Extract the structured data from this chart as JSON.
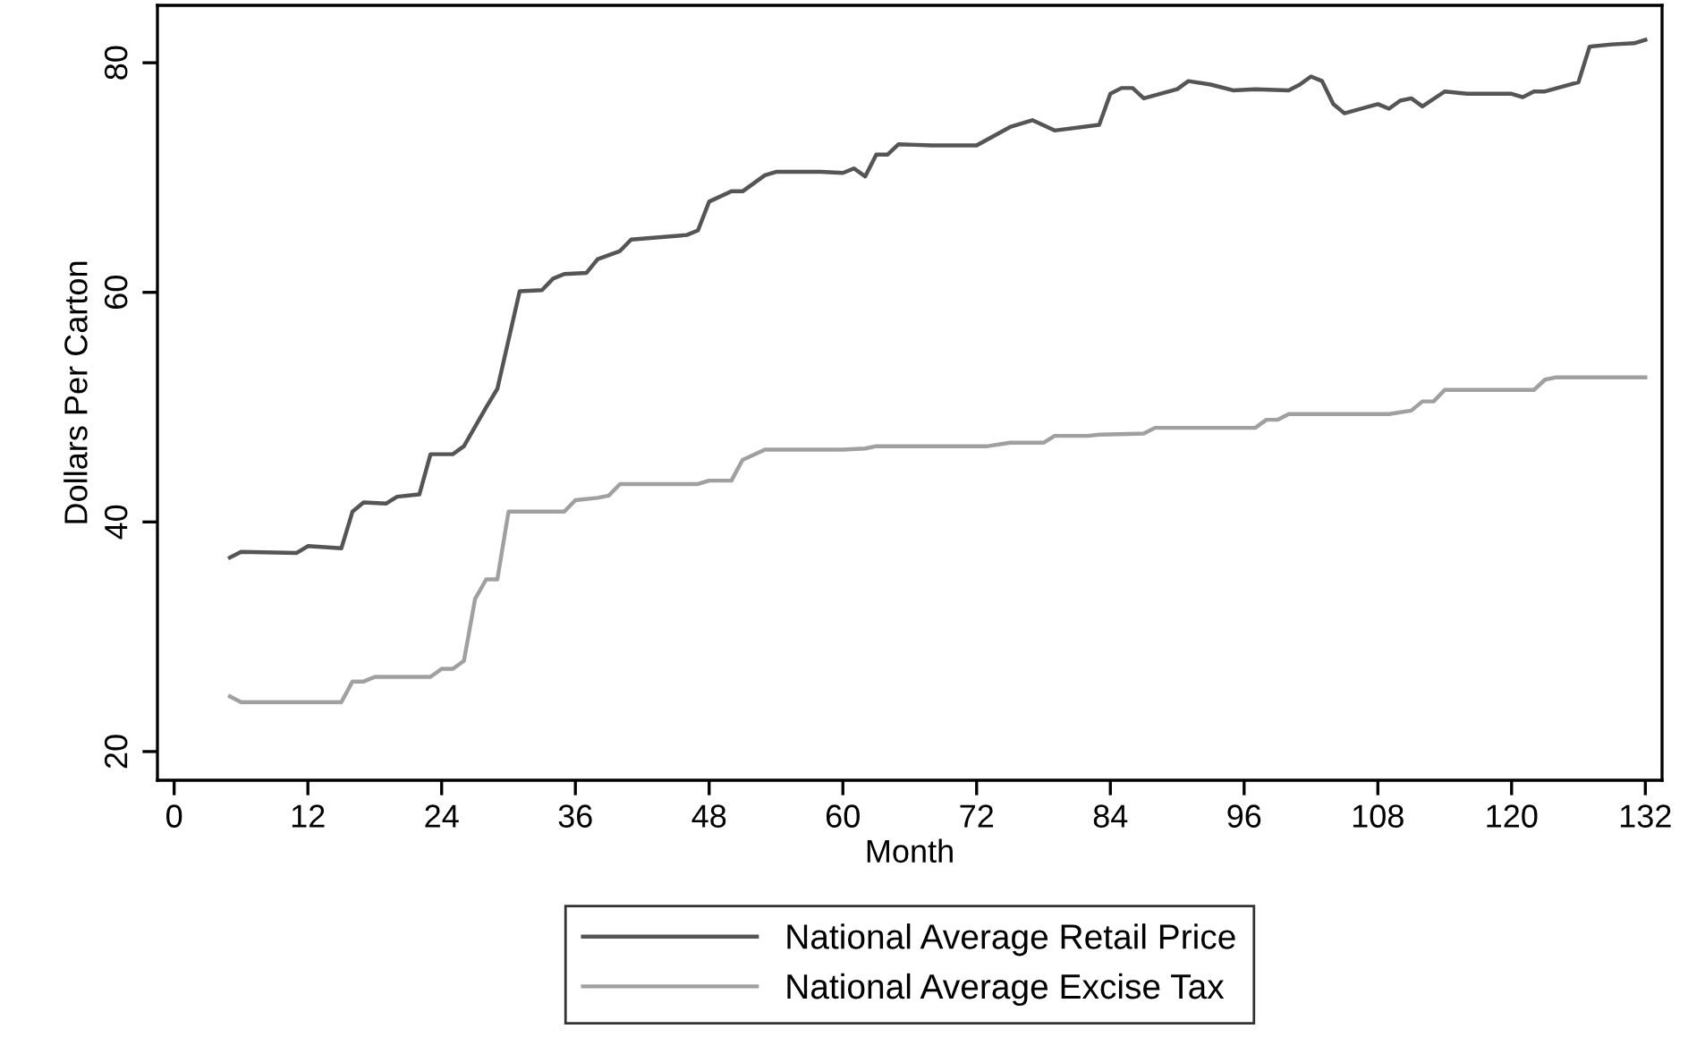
{
  "chart_data": {
    "type": "line",
    "xlabel": "Month",
    "ylabel": "Dollars Per Carton",
    "xlim": [
      -1.5,
      133.5
    ],
    "xticks": [
      0,
      12,
      24,
      36,
      48,
      60,
      72,
      84,
      96,
      108,
      120,
      132
    ],
    "ylim": [
      17.5,
      85
    ],
    "yticks": [
      20,
      40,
      60,
      80
    ],
    "grid": false,
    "legend": "bottom",
    "line_style": "solid",
    "series": [
      {
        "name": "National Average Retail Price",
        "color": "#555555",
        "x": [
          5,
          6,
          11,
          12,
          15,
          16,
          17,
          19,
          20,
          22,
          23,
          25,
          26,
          28,
          29,
          31,
          33,
          34,
          35,
          37,
          38,
          40,
          41,
          46,
          47,
          48,
          50,
          51,
          53,
          54,
          58,
          60,
          61,
          62,
          63,
          64,
          65,
          68,
          72,
          75,
          77,
          79,
          83,
          84,
          85,
          86,
          87,
          90,
          91,
          93,
          95,
          97,
          100,
          101,
          102,
          103,
          104,
          105,
          108,
          109,
          110,
          111,
          112,
          114,
          116,
          120,
          121,
          122,
          123,
          126,
          127,
          129,
          131,
          132
        ],
        "values": [
          36.9,
          37.4,
          37.3,
          37.9,
          37.7,
          40.9,
          41.7,
          41.6,
          42.2,
          42.4,
          45.9,
          45.9,
          46.6,
          50.0,
          51.6,
          60.1,
          60.2,
          61.2,
          61.6,
          61.7,
          62.9,
          63.6,
          64.6,
          65.0,
          65.4,
          67.9,
          68.8,
          68.8,
          70.2,
          70.5,
          70.5,
          70.4,
          70.8,
          70.1,
          72.0,
          72.0,
          72.9,
          72.8,
          72.8,
          74.4,
          75.0,
          74.1,
          74.6,
          77.3,
          77.8,
          77.8,
          76.9,
          77.7,
          78.4,
          78.1,
          77.6,
          77.7,
          77.6,
          78.1,
          78.8,
          78.4,
          76.4,
          75.6,
          76.4,
          76.0,
          76.7,
          76.9,
          76.2,
          77.5,
          77.3,
          77.3,
          77.0,
          77.5,
          77.5,
          78.3,
          81.4,
          81.6,
          81.7,
          82.0
        ]
      },
      {
        "name": "National Average Excise Tax",
        "color": "#a0a0a0",
        "x": [
          5,
          6,
          15,
          16,
          17,
          18,
          23,
          24,
          25,
          26,
          27,
          28,
          29,
          30,
          35,
          36,
          38,
          39,
          40,
          47,
          48,
          50,
          51,
          53,
          60,
          62,
          63,
          73,
          75,
          78,
          79,
          82,
          83,
          87,
          88,
          97,
          98,
          99,
          100,
          109,
          111,
          112,
          113,
          114,
          122,
          123,
          124,
          132
        ],
        "values": [
          24.8,
          24.3,
          24.3,
          26.1,
          26.1,
          26.5,
          26.5,
          27.2,
          27.2,
          27.9,
          33.3,
          35.0,
          35.0,
          40.9,
          40.9,
          41.9,
          42.1,
          42.3,
          43.3,
          43.3,
          43.6,
          43.6,
          45.4,
          46.3,
          46.3,
          46.4,
          46.6,
          46.6,
          46.9,
          46.9,
          47.5,
          47.5,
          47.6,
          47.7,
          48.2,
          48.2,
          48.9,
          48.9,
          49.4,
          49.4,
          49.7,
          50.5,
          50.5,
          51.5,
          51.5,
          52.4,
          52.6,
          52.6
        ]
      }
    ]
  }
}
